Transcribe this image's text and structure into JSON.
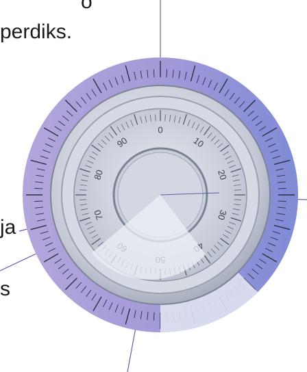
{
  "texts": {
    "top_right_fragment": "o",
    "top_line": "perdiks.",
    "left_mid": "ja",
    "left_low": "s"
  },
  "dial": {
    "numbers": [
      "0",
      "10",
      "20",
      "30",
      "40",
      "50",
      "60",
      "70",
      "80",
      "90"
    ],
    "colors": {
      "left_tint": "#a79bd6",
      "right_tint": "#7c86d4",
      "face": "#d8dbe4",
      "wedge": "#eef0f6",
      "line": "#6a5aa8"
    }
  }
}
